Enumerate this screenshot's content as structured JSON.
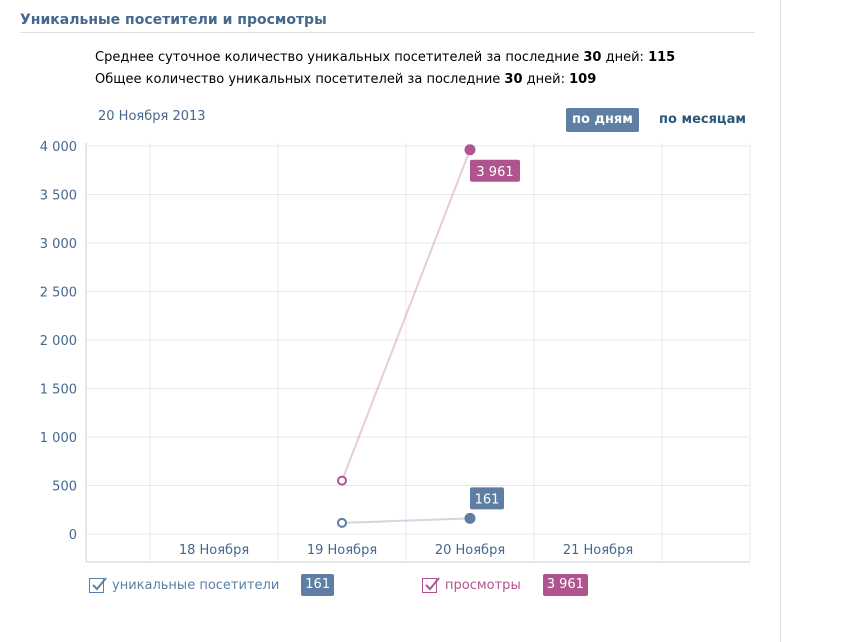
{
  "header": {
    "title": "Уникальные посетители и просмотры"
  },
  "stats": {
    "line1_prefix": "Среднее суточное количество уникальных посетителей за последние ",
    "line1_days": "30",
    "line1_mid": " дней: ",
    "line1_value": "115",
    "line2_prefix": "Общее количество уникальных посетителей за последние ",
    "line2_days": "30",
    "line2_mid": " дней: ",
    "line2_value": "109"
  },
  "date_label": "20 Ноября 2013",
  "period": {
    "by_days": "по дням",
    "by_months": "по месяцам",
    "active": "by_days"
  },
  "colors": {
    "visitors": "#5e7fa3",
    "views": "#b0548f",
    "axis_text": "#45688e",
    "grid": "#e6e9ef"
  },
  "chart_data": {
    "type": "line",
    "title": "",
    "xlabel": "",
    "ylabel": "",
    "ylim": [
      0,
      4000
    ],
    "y_ticks": [
      0,
      500,
      1000,
      1500,
      2000,
      2500,
      3000,
      3500,
      4000
    ],
    "y_tick_labels": [
      "0",
      "500",
      "1 000",
      "1 500",
      "2 000",
      "2 500",
      "3 000",
      "3 500",
      "4 000"
    ],
    "categories": [
      "18 Ноября",
      "19 Ноября",
      "20 Ноября",
      "21 Ноября"
    ],
    "grid": true,
    "legend": "bottom",
    "series": [
      {
        "name": "уникальные посетители",
        "key": "visitors",
        "x": [
          "19 Ноября",
          "20 Ноября"
        ],
        "values": [
          115,
          161
        ],
        "highlight_label": "161"
      },
      {
        "name": "просмотры",
        "key": "views",
        "x": [
          "19 Ноября",
          "20 Ноября"
        ],
        "values": [
          550,
          3961
        ],
        "highlight_label": "3 961"
      }
    ]
  },
  "legend": {
    "visitors": {
      "label": "уникальные посетители",
      "value": "161",
      "checked": true
    },
    "views": {
      "label": "просмотры",
      "value": "3 961",
      "checked": true
    }
  }
}
